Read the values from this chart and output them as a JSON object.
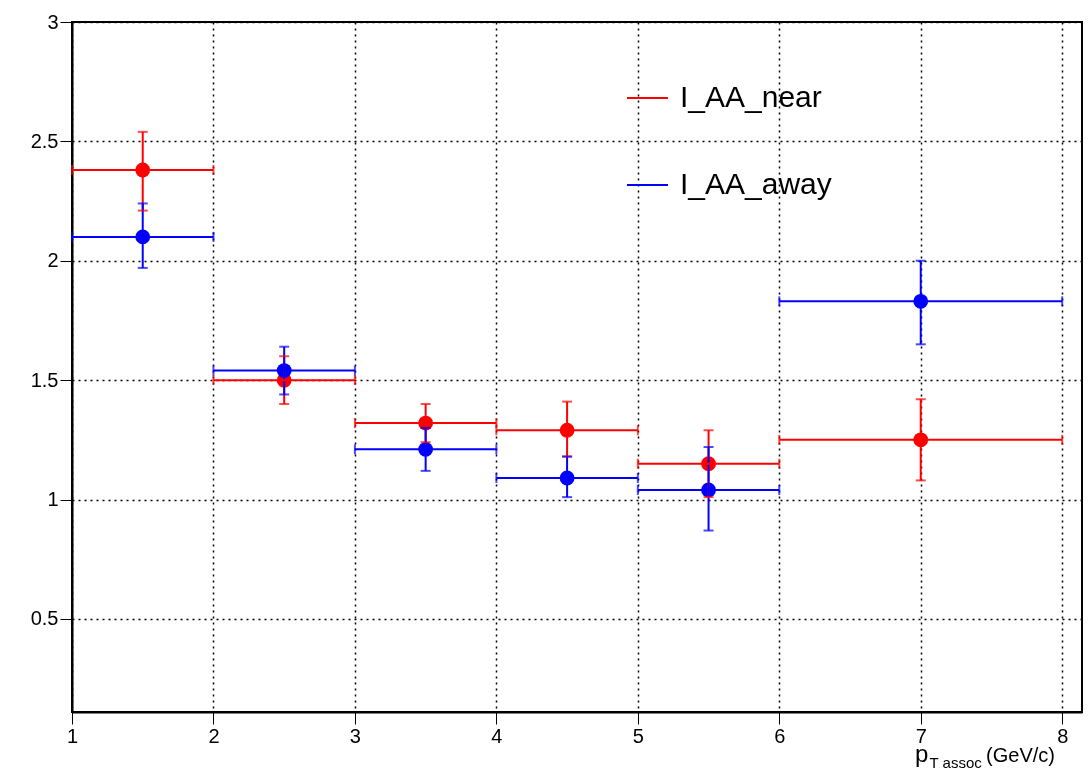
{
  "chart_data": {
    "type": "scatter",
    "xlabel": "p$_{T assoc}$ (GeV/c)",
    "xlim": [
      1,
      8.14
    ],
    "ylim": [
      0.11,
      3
    ],
    "xticks": [
      1,
      2,
      3,
      4,
      5,
      6,
      7,
      8
    ],
    "yticks": [
      0.5,
      1,
      1.5,
      2,
      2.5,
      3
    ],
    "grid": true,
    "legend": "top right",
    "marker": "circle",
    "series": [
      {
        "name": "I_AA_near",
        "color": "#ff0000",
        "x": [
          1.5,
          2.5,
          3.5,
          4.5,
          5.5,
          7
        ],
        "values": [
          2.38,
          1.5,
          1.32,
          1.29,
          1.15,
          1.25
        ],
        "errors": [
          [
            2.21,
            2.54
          ],
          [
            1.4,
            1.6
          ],
          [
            1.24,
            1.4
          ],
          [
            1.18,
            1.41
          ],
          [
            1.01,
            1.29
          ],
          [
            1.08,
            1.42
          ]
        ],
        "xerrors": [
          [
            1,
            2
          ],
          [
            2,
            3
          ],
          [
            3,
            4
          ],
          [
            4,
            5
          ],
          [
            5,
            6
          ],
          [
            6,
            8
          ]
        ]
      },
      {
        "name": "I_AA_away",
        "color": "#0000ff",
        "x": [
          1.5,
          2.5,
          3.5,
          4.5,
          5.5,
          7
        ],
        "values": [
          2.1,
          1.54,
          1.21,
          1.09,
          1.04,
          1.83
        ],
        "errors": [
          [
            1.97,
            2.24
          ],
          [
            1.44,
            1.64
          ],
          [
            1.12,
            1.3
          ],
          [
            1.01,
            1.18
          ],
          [
            0.87,
            1.22
          ],
          [
            1.65,
            2.0
          ]
        ],
        "xerrors": [
          [
            1,
            2
          ],
          [
            2,
            3
          ],
          [
            3,
            4
          ],
          [
            4,
            5
          ],
          [
            5,
            6
          ],
          [
            6,
            8
          ]
        ]
      }
    ]
  }
}
